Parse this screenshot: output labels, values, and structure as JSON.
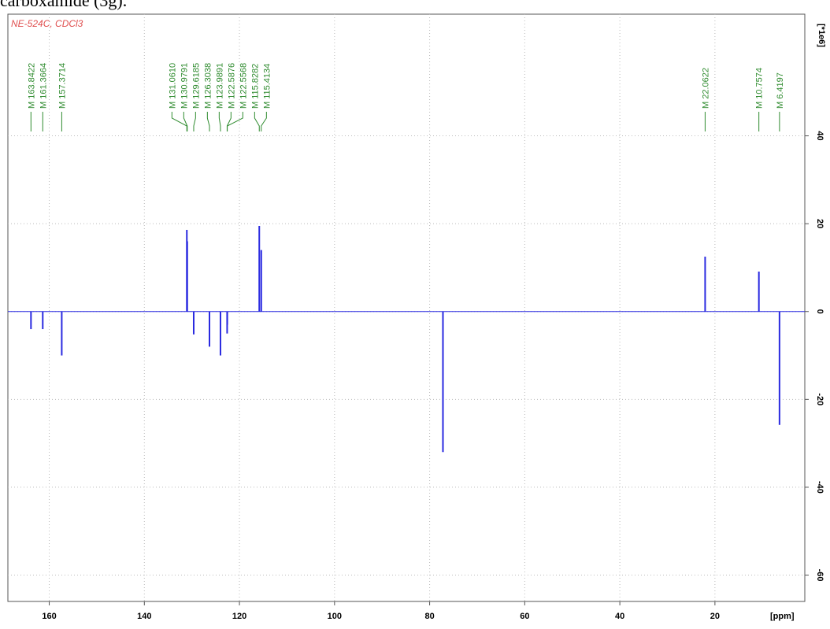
{
  "caption": "carboxamide (3g).",
  "chart_data": {
    "type": "spectrum",
    "title": "NE-524C, CDCl3",
    "x_label": "[ppm]",
    "y_label": "[*1e6]",
    "x": [
      163.8422,
      161.3664,
      157.3714,
      131.061,
      130.9791,
      129.6185,
      126.3038,
      123.9891,
      122.5876,
      122.5568,
      115.8282,
      115.4134,
      77.2,
      22.0622,
      10.7574,
      6.4197
    ],
    "values": [
      -4,
      -4,
      -10,
      18.6,
      16,
      -5.2,
      -8,
      -10,
      -5,
      -3,
      19.5,
      14,
      -32,
      12.5,
      9.1,
      -25.8
    ],
    "peak_labels": [
      "M 163.8422",
      "M 161.3664",
      "M 157.3714",
      "M 131.0610",
      "M 130.9791",
      "M 129.6185",
      "M 126.3038",
      "M 123.9891",
      "M 122.5876",
      "M 122.5568",
      "M 115.8282",
      "M 115.4134",
      null,
      "M 22.0622",
      "M 10.7574",
      "M 6.4197"
    ],
    "color": "#2a2ae0",
    "label_color": "#2e8b2e",
    "title_color": "#e05050",
    "xlim": [
      168.7,
      1.1
    ],
    "xticks": [
      160,
      140,
      120,
      100,
      80,
      60,
      40,
      20
    ],
    "ylim": [
      -66,
      67.7
    ],
    "yticks": [
      -60,
      -40,
      -20,
      0,
      20,
      40
    ],
    "grid": true
  }
}
